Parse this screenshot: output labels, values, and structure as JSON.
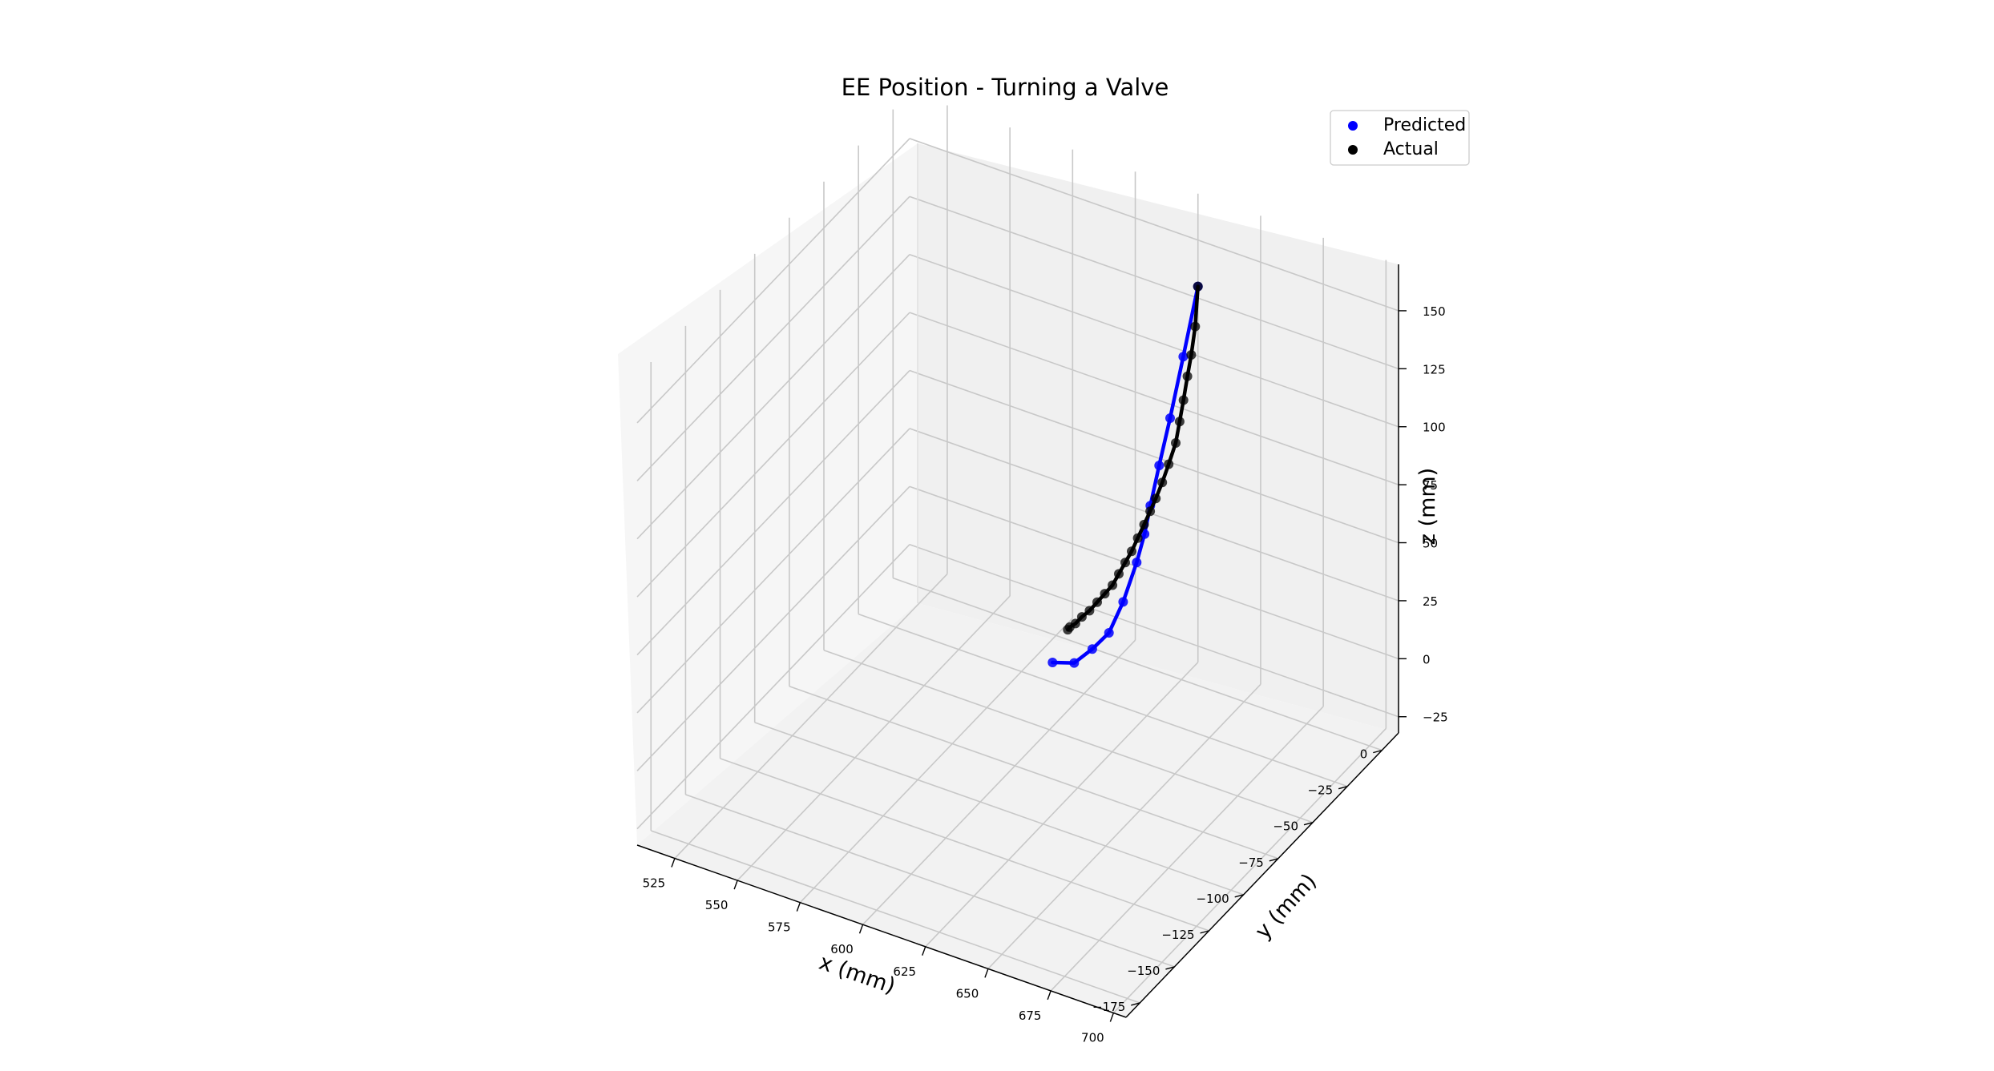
{
  "chart_data": {
    "type": "scatter",
    "projection": "3d",
    "title": "EE Position - Turning a Valve",
    "xlabel": "x (mm)",
    "ylabel": "y (mm)",
    "zlabel": "z (mm)",
    "xlim": [
      510,
      705
    ],
    "ylim": [
      -185,
      12
    ],
    "zlim": [
      -32,
      170
    ],
    "xticks": [
      525,
      550,
      575,
      600,
      625,
      650,
      675,
      700
    ],
    "yticks": [
      0,
      -25,
      -50,
      -75,
      -100,
      -125,
      -150,
      -175
    ],
    "zticks": [
      150,
      125,
      100,
      75,
      50,
      25,
      0,
      -25
    ],
    "xtick_labels": [
      "525",
      "550",
      "575",
      "600",
      "625",
      "650",
      "675",
      "700"
    ],
    "ytick_labels": [
      "0",
      "−25",
      "−50",
      "−75",
      "−100",
      "−125",
      "−150",
      "−175"
    ],
    "ztick_labels": [
      "150",
      "125",
      "100",
      "75",
      "50",
      "25",
      "0",
      "−25"
    ],
    "grid": true,
    "legend_position": "top-right",
    "series": [
      {
        "name": "Predicted",
        "color": "#0000ff",
        "markers": true,
        "connected": true,
        "points": [
          [
            625.0,
            12.0,
            130.0
          ],
          [
            620.8,
            9.0,
            100.0
          ],
          [
            617.2,
            6.0,
            74.0
          ],
          [
            614.2,
            3.5,
            54.0
          ],
          [
            611.8,
            1.5,
            37.0
          ],
          [
            610.2,
            0.2,
            25.0
          ],
          [
            608.0,
            -1.5,
            13.0
          ],
          [
            604.0,
            -4.0,
            -4.0
          ],
          [
            600.0,
            -7.0,
            -17.0
          ],
          [
            595.0,
            -10.0,
            -24.0
          ],
          [
            589.6,
            -13.3,
            -30.0
          ],
          [
            583.0,
            -17.0,
            -30.0
          ]
        ]
      },
      {
        "name": "Actual",
        "color": "#000000",
        "markers": true,
        "connected": true,
        "points": [
          [
            625.0,
            12.0,
            130.0
          ],
          [
            625.0,
            10.0,
            114.0
          ],
          [
            624.0,
            9.0,
            102.0
          ],
          [
            623.0,
            8.0,
            93.0
          ],
          [
            622.0,
            7.0,
            83.0
          ],
          [
            621.0,
            6.0,
            74.0
          ],
          [
            620.0,
            5.0,
            65.0
          ],
          [
            618.0,
            3.5,
            56.0
          ],
          [
            616.0,
            2.5,
            48.0
          ],
          [
            614.0,
            1.5,
            41.0
          ],
          [
            612.0,
            1.0,
            35.0
          ],
          [
            610.0,
            0.2,
            29.0
          ],
          [
            608.0,
            -0.7,
            23.0
          ],
          [
            606.0,
            -1.5,
            17.0
          ],
          [
            604.0,
            -2.5,
            12.0
          ],
          [
            602.0,
            -3.5,
            7.0
          ],
          [
            600.0,
            -4.5,
            2.0
          ],
          [
            597.5,
            -5.5,
            -2.0
          ],
          [
            595.0,
            -6.5,
            -6.0
          ],
          [
            592.5,
            -7.5,
            -10.0
          ],
          [
            590.0,
            -8.5,
            -13.0
          ],
          [
            588.0,
            -9.5,
            -16.0
          ],
          [
            586.0,
            -10.0,
            -18.0
          ],
          [
            585.5,
            -10.5,
            -19.0
          ]
        ]
      }
    ]
  }
}
